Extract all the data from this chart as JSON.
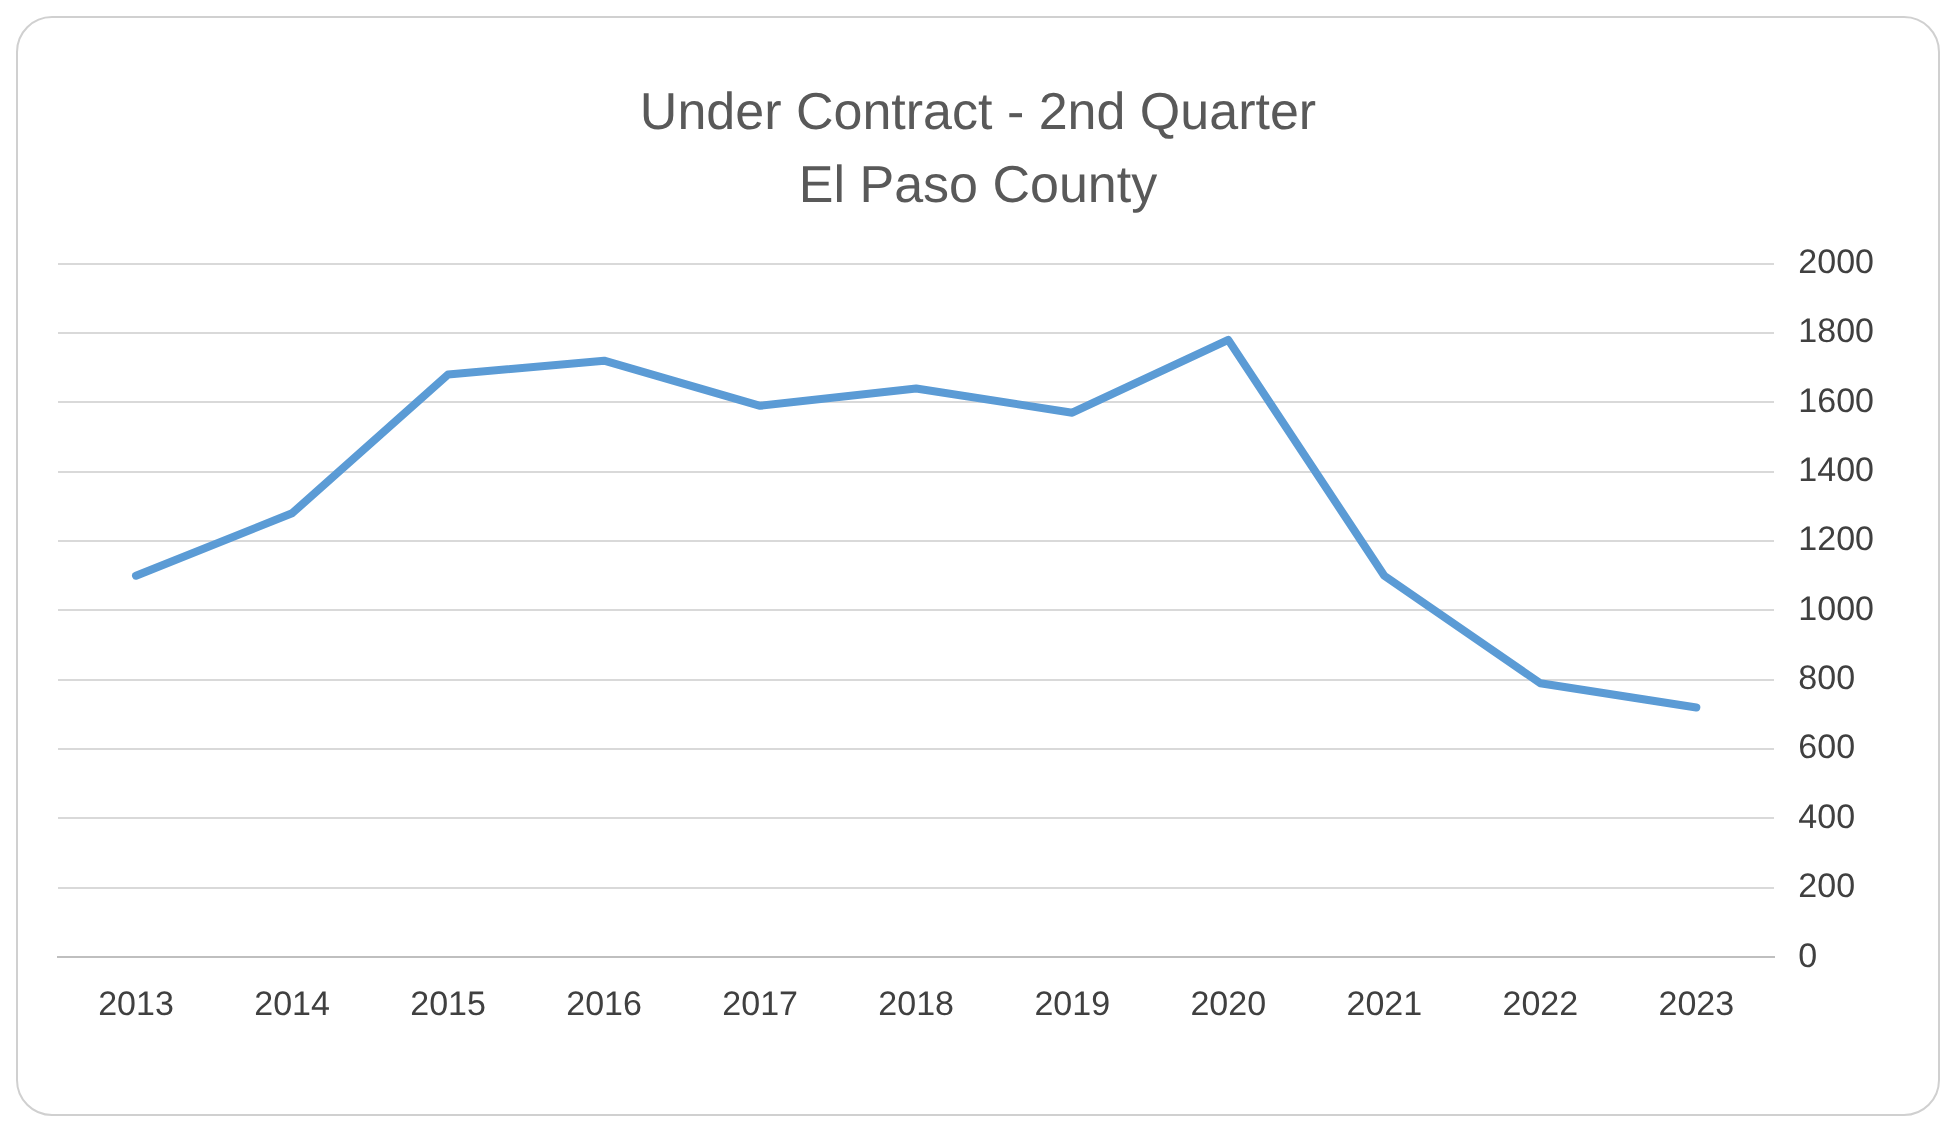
{
  "chart_data": {
    "type": "line",
    "title": [
      "Under Contract - 2nd Quarter",
      "El Paso County"
    ],
    "categories": [
      "2013",
      "2014",
      "2015",
      "2016",
      "2017",
      "2018",
      "2019",
      "2020",
      "2021",
      "2022",
      "2023"
    ],
    "series": [
      {
        "color": "#5b9bd5",
        "values": [
          1100,
          1280,
          1680,
          1720,
          1590,
          1640,
          1570,
          1780,
          1100,
          790,
          720
        ]
      }
    ],
    "ylim": [
      0,
      2000
    ],
    "yticks": [
      0,
      200,
      400,
      600,
      800,
      1000,
      1200,
      1400,
      1600,
      1800,
      2000
    ],
    "grid": "y",
    "legend": false,
    "marker": "none",
    "line_style": "solid"
  }
}
